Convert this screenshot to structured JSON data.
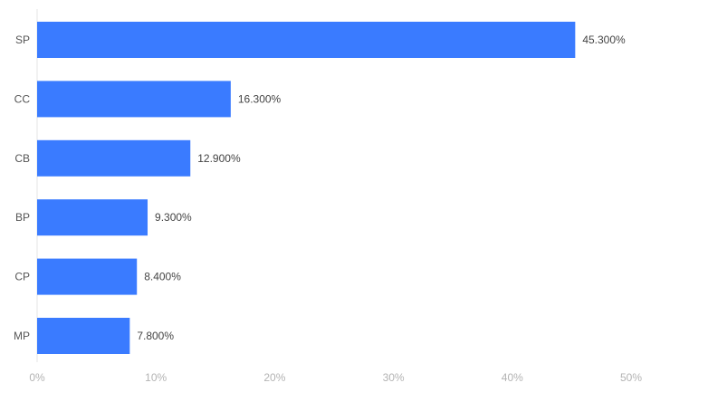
{
  "chart_data": {
    "type": "bar",
    "orientation": "horizontal",
    "categories": [
      "SP",
      "CC",
      "CB",
      "BP",
      "CP",
      "MP"
    ],
    "values": [
      45.3,
      16.3,
      12.9,
      9.3,
      8.4,
      7.8
    ],
    "value_labels": [
      "45.300%",
      "16.300%",
      "12.900%",
      "9.300%",
      "8.400%",
      "7.800%"
    ],
    "x_ticks": [
      0,
      10,
      20,
      30,
      40,
      50
    ],
    "x_tick_labels": [
      "0%",
      "10%",
      "20%",
      "30%",
      "40%",
      "50%"
    ],
    "xlim": [
      0,
      50
    ],
    "grid": false,
    "bar_color": "#3a7bff"
  }
}
